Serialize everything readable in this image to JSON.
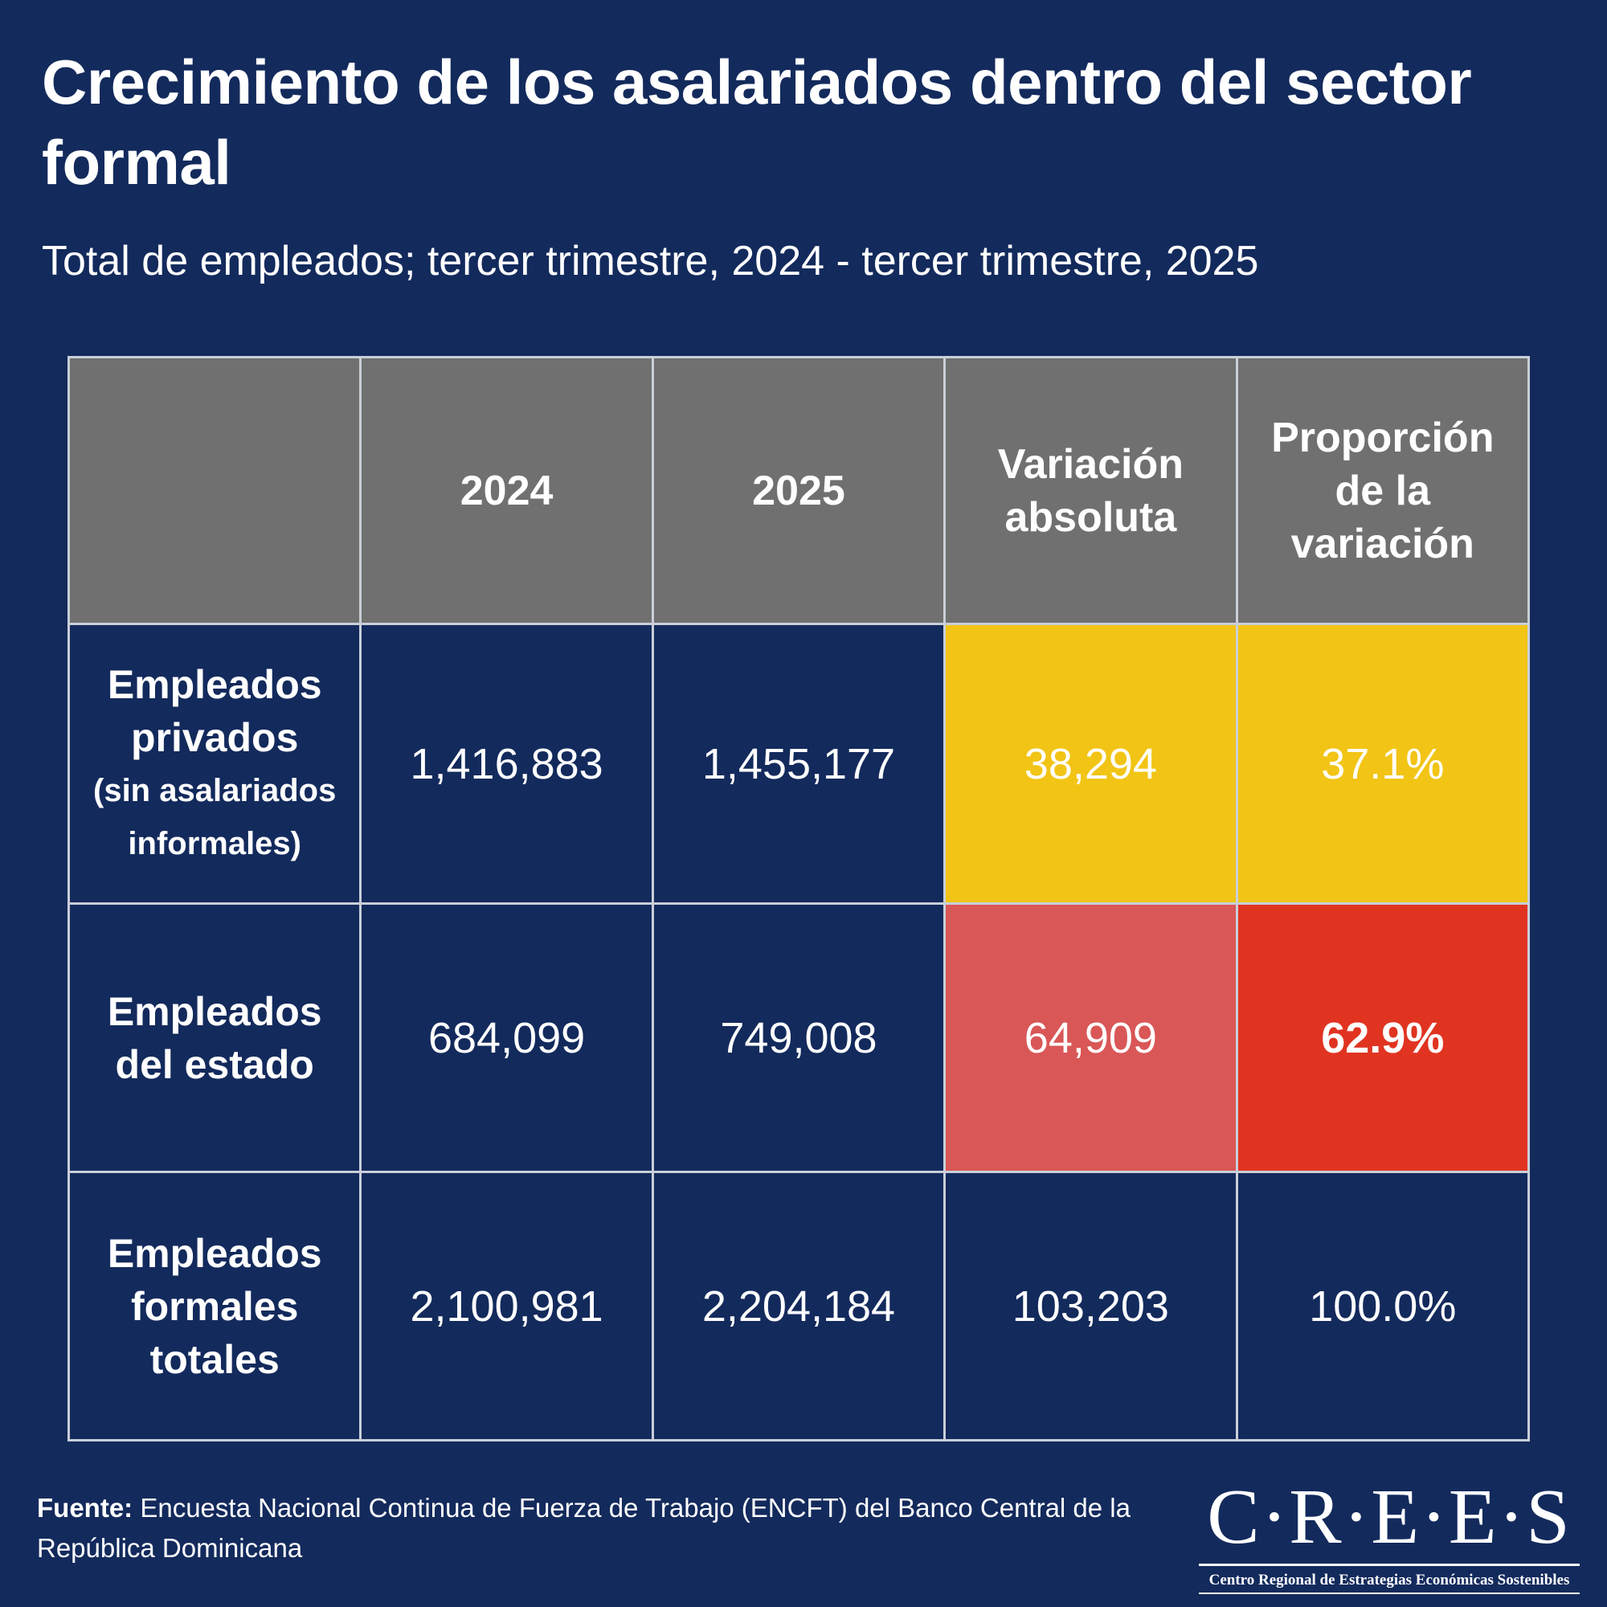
{
  "title": "Crecimiento de los asalariados dentro del sector formal",
  "subtitle": "Total de empleados; tercer trimestre, 2024 - tercer trimestre, 2025",
  "chart_data": {
    "type": "table",
    "columns": [
      "",
      "2024",
      "2025",
      "Variación absoluta",
      "Proporción de la variación"
    ],
    "rows": [
      {
        "label": "Empleados privados",
        "label_sub": "(sin asalariados informales)",
        "values": [
          "1,416,883",
          "1,455,177",
          "38,294",
          "37.1%"
        ]
      },
      {
        "label": "Empleados del estado",
        "label_sub": "",
        "values": [
          "684,099",
          "749,008",
          "64,909",
          "62.9%"
        ]
      },
      {
        "label": "Empleados formales totales",
        "label_sub": "",
        "values": [
          "2,100,981",
          "2,204,184",
          "103,203",
          "100.0%"
        ]
      }
    ],
    "highlight_colors": {
      "header": "#707070",
      "privados": "#f2c416",
      "estado_absoluta": "#d95757",
      "estado_proporcion": "#e03421"
    }
  },
  "footer": {
    "source_label": "Fuente:",
    "source_text": "Encuesta Nacional Continua de Fuerza de Trabajo (ENCFT) del Banco Central de la República Dominicana"
  },
  "logo": {
    "wordmark": "C·R·E·E·S",
    "tagline": "Centro Regional de Estrategias Económicas Sostenibles"
  },
  "colors": {
    "background": "#132a5c",
    "grid": "#c9cfd9",
    "text": "#ffffff"
  }
}
